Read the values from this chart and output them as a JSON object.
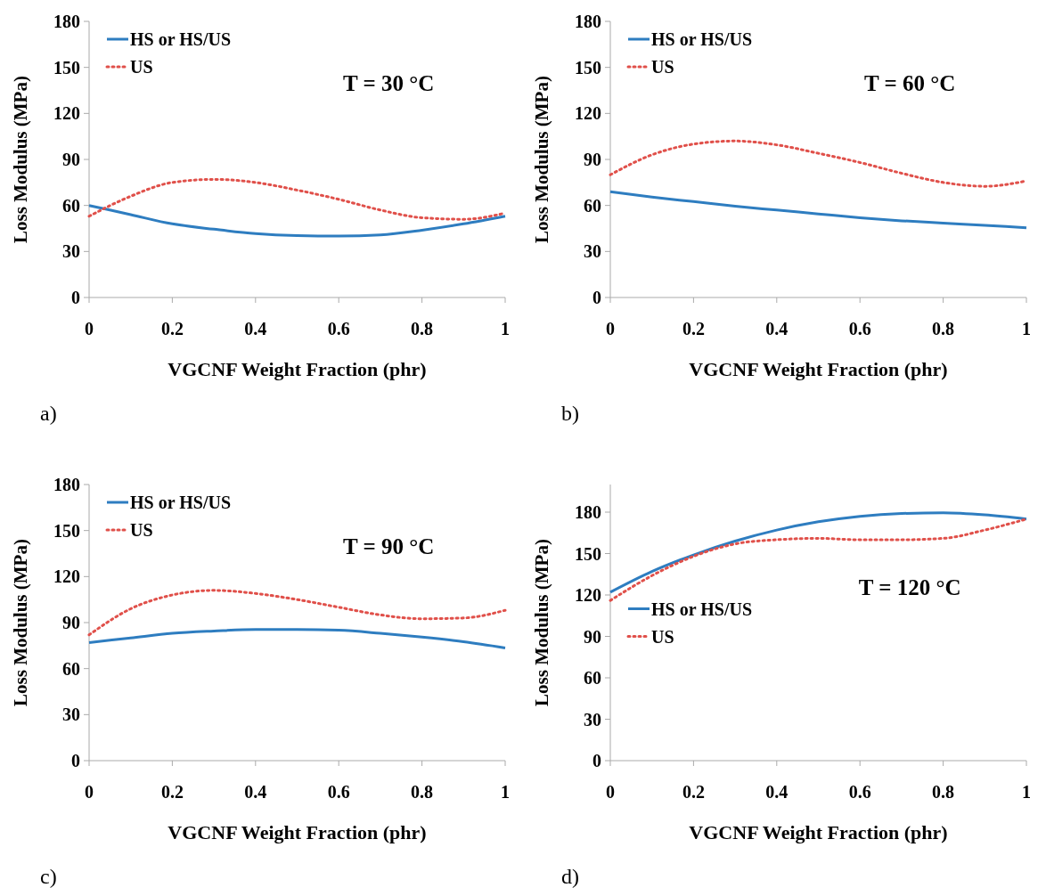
{
  "chart_data": [
    {
      "type": "line",
      "xlabel": "VGCNF Weight Fraction (phr)",
      "ylabel": "Loss Modulus (MPa)",
      "annotations": [
        "T = 30 °C",
        "a)"
      ],
      "x": [
        0,
        0.1,
        0.2,
        0.3,
        0.4,
        0.5,
        0.6,
        0.7,
        0.8,
        0.9,
        1
      ],
      "xlim": [
        0,
        1
      ],
      "xticks": [
        0,
        0.2,
        0.4,
        0.6,
        0.8,
        1
      ],
      "ylim": [
        0,
        180
      ],
      "yticks": [
        0,
        30,
        60,
        90,
        120,
        150,
        180
      ],
      "legend": "top left",
      "series": [
        {
          "name": "HS or HS/US",
          "color": "#2e7dc0",
          "line_style": "solid",
          "values": [
            60,
            54,
            48,
            44.5,
            41.6,
            40.3,
            40,
            40.8,
            43.9,
            48,
            53
          ]
        },
        {
          "name": "US",
          "color": "#e0504a",
          "line_style": "dotted",
          "values": [
            53,
            66,
            75,
            77,
            75,
            70,
            64,
            57,
            52,
            51,
            55
          ]
        }
      ]
    },
    {
      "type": "line",
      "xlabel": "VGCNF Weight Fraction (phr)",
      "ylabel": "Loss Modulus (MPa)",
      "annotations": [
        "T = 60 °C",
        "b)"
      ],
      "x": [
        0,
        0.1,
        0.2,
        0.3,
        0.4,
        0.5,
        0.6,
        0.7,
        0.8,
        0.9,
        1
      ],
      "xlim": [
        0,
        1
      ],
      "xticks": [
        0,
        0.2,
        0.4,
        0.6,
        0.8,
        1
      ],
      "ylim": [
        0,
        180
      ],
      "yticks": [
        0,
        30,
        60,
        90,
        120,
        150,
        180
      ],
      "legend": "top left",
      "series": [
        {
          "name": "HS or HS/US",
          "color": "#2e7dc0",
          "line_style": "solid",
          "values": [
            69,
            65.5,
            62.5,
            59.5,
            57,
            54.5,
            52,
            50,
            48.5,
            47,
            45.5
          ]
        },
        {
          "name": "US",
          "color": "#e0504a",
          "line_style": "dotted",
          "values": [
            80,
            93,
            100,
            102,
            99.5,
            94,
            88,
            81,
            75,
            72.5,
            76
          ]
        }
      ]
    },
    {
      "type": "line",
      "xlabel": "VGCNF Weight Fraction (phr)",
      "ylabel": "Loss Modulus (MPa)",
      "annotations": [
        "T = 90 °C",
        "c)"
      ],
      "x": [
        0,
        0.1,
        0.2,
        0.3,
        0.4,
        0.5,
        0.6,
        0.7,
        0.8,
        0.9,
        1
      ],
      "xlim": [
        0,
        1
      ],
      "xticks": [
        0,
        0.2,
        0.4,
        0.6,
        0.8,
        1
      ],
      "ylim": [
        0,
        180
      ],
      "yticks": [
        0,
        30,
        60,
        90,
        120,
        150,
        180
      ],
      "legend": "top left",
      "series": [
        {
          "name": "HS or HS/US",
          "color": "#2e7dc0",
          "line_style": "solid",
          "values": [
            77,
            80,
            83,
            84.5,
            85.5,
            85.5,
            85,
            83,
            80.5,
            77.5,
            73.5
          ]
        },
        {
          "name": "US",
          "color": "#e0504a",
          "line_style": "dotted",
          "values": [
            82,
            99,
            108,
            111,
            109,
            105,
            100,
            95,
            92.5,
            93,
            98
          ]
        }
      ]
    },
    {
      "type": "line",
      "xlabel": "VGCNF Weight Fraction (phr)",
      "ylabel": "Loss Modulus (MPa)",
      "annotations": [
        "T = 120 °C",
        "d)"
      ],
      "x": [
        0,
        0.1,
        0.2,
        0.3,
        0.4,
        0.5,
        0.6,
        0.7,
        0.8,
        0.9,
        1
      ],
      "xlim": [
        0,
        1
      ],
      "xticks": [
        0,
        0.2,
        0.4,
        0.6,
        0.8,
        1
      ],
      "ylim": [
        0,
        200
      ],
      "yticks": [
        0,
        30,
        60,
        90,
        120,
        150,
        180
      ],
      "legend": "left",
      "series": [
        {
          "name": "HS or HS/US",
          "color": "#2e7dc0",
          "line_style": "solid",
          "values": [
            122,
            137,
            149,
            159,
            167,
            173,
            177,
            179,
            179.5,
            178,
            175
          ]
        },
        {
          "name": "US",
          "color": "#e0504a",
          "line_style": "dotted",
          "values": [
            116,
            134,
            148,
            157,
            160,
            161,
            160,
            160,
            161,
            167,
            175
          ]
        }
      ]
    }
  ]
}
